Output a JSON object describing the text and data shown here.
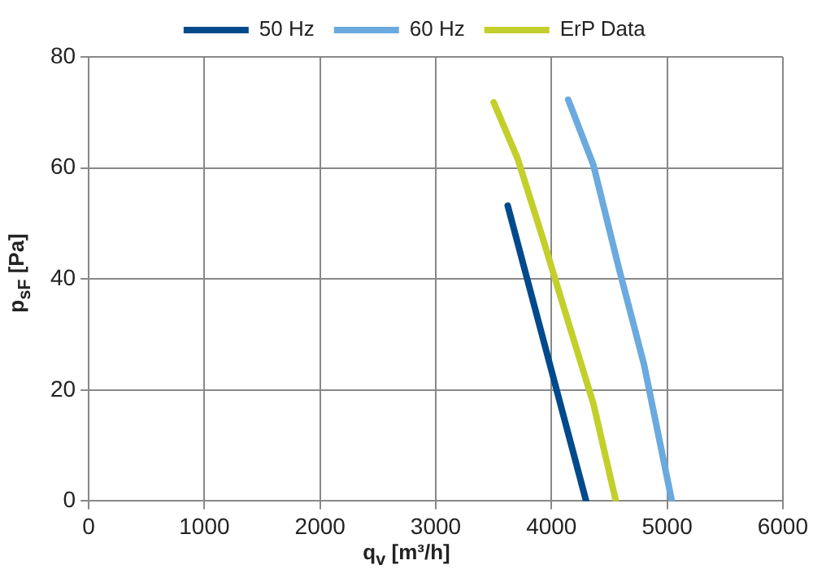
{
  "chart_data": {
    "type": "line",
    "xlabel": "q$_{v}$ [m³/h]",
    "ylabel": "p$_{sF}$ [Pa]",
    "xlim": [
      0,
      6000
    ],
    "xticks": [
      0,
      1000,
      2000,
      3000,
      4000,
      5000,
      6000
    ],
    "ylim": [
      0,
      80
    ],
    "yticks": [
      0,
      20,
      40,
      60,
      80
    ],
    "grid": true,
    "legend": "top",
    "marker": "none",
    "line_style": "solid",
    "series": [
      {
        "name": "50 Hz",
        "color": "#004a8c",
        "x": [
          3622,
          4045,
          4300
        ],
        "values": [
          53.2,
          20,
          0
        ]
      },
      {
        "name": "60 Hz",
        "color": "#6aaade",
        "x": [
          4145,
          4363,
          4581,
          4799,
          5041
        ],
        "values": [
          72.3,
          60.5,
          42.1,
          24.7,
          0
        ]
      },
      {
        "name": "ErP Data",
        "color": "#c3cf2a",
        "x": [
          3501,
          3709,
          3927,
          4121,
          4363,
          4557
        ],
        "values": [
          71.8,
          61.6,
          47.2,
          33.9,
          17.5,
          0
        ]
      }
    ]
  }
}
